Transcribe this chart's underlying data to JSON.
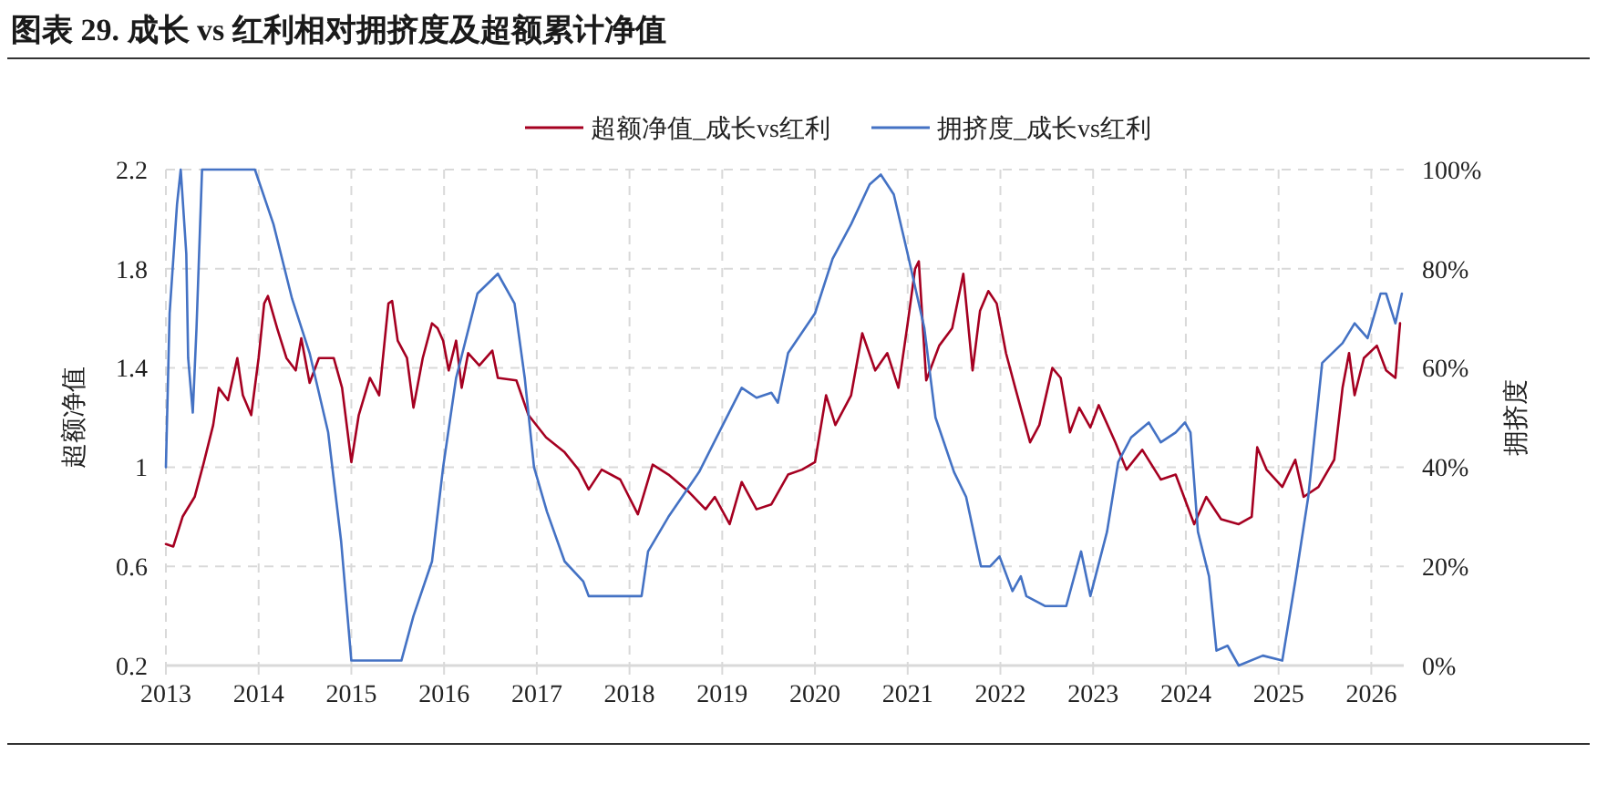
{
  "chart_data": {
    "type": "line",
    "title": "图表 29. 成长 vs 红利相对拥挤度及超额累计净值",
    "ylabel": "超额净值",
    "y2label": "拥挤度",
    "xlim": [
      2013,
      2026.35
    ],
    "xticks": [
      2013,
      2014,
      2015,
      2016,
      2017,
      2018,
      2019,
      2020,
      2021,
      2022,
      2023,
      2024,
      2025,
      2026
    ],
    "ylim": [
      0.2,
      2.2
    ],
    "yticks": [
      {
        "value": 0.2,
        "label": "0.2"
      },
      {
        "value": 0.6,
        "label": "0.6"
      },
      1,
      {
        "value": 1.4,
        "label": "1.4"
      },
      {
        "value": 1.8,
        "label": "1.8"
      },
      {
        "value": 2.2,
        "label": "2.2"
      }
    ],
    "y2lim": [
      0,
      100
    ],
    "y2ticks": [
      {
        "value": 0,
        "label": "0%"
      },
      {
        "value": 20,
        "label": "20%"
      },
      {
        "value": 40,
        "label": "40%"
      },
      {
        "value": 60,
        "label": "60%"
      },
      {
        "value": 80,
        "label": "80%"
      },
      {
        "value": 100,
        "label": "100%"
      }
    ],
    "grid": true,
    "legend": "top",
    "line_style": "solid",
    "marker": "none",
    "series": [
      {
        "name": "超额净值_成长vs红利",
        "color": "#a50021",
        "x": [
          2013.0,
          2013.08,
          2013.18,
          2013.31,
          2013.41,
          2013.51,
          2013.57,
          2013.67,
          2013.77,
          2013.83,
          2013.92,
          2014.0,
          2014.06,
          2014.1,
          2014.2,
          2014.3,
          2014.4,
          2014.46,
          2014.55,
          2014.65,
          2014.81,
          2014.9,
          2015.0,
          2015.08,
          2015.2,
          2015.3,
          2015.4,
          2015.44,
          2015.5,
          2015.6,
          2015.67,
          2015.77,
          2015.87,
          2015.93,
          2015.99,
          2016.05,
          2016.13,
          2016.19,
          2016.26,
          2016.38,
          2016.52,
          2016.58,
          2016.78,
          2016.91,
          2017.1,
          2017.3,
          2017.45,
          2017.56,
          2017.7,
          2017.9,
          2018.09,
          2018.25,
          2018.42,
          2018.64,
          2018.82,
          2018.92,
          2019.08,
          2019.21,
          2019.37,
          2019.53,
          2019.71,
          2019.86,
          2020.0,
          2020.12,
          2020.22,
          2020.39,
          2020.51,
          2020.65,
          2020.78,
          2020.9,
          2021.0,
          2021.08,
          2021.12,
          2021.2,
          2021.34,
          2021.48,
          2021.6,
          2021.7,
          2021.78,
          2021.87,
          2021.96,
          2022.06,
          2022.16,
          2022.32,
          2022.42,
          2022.56,
          2022.65,
          2022.75,
          2022.85,
          2022.97,
          2023.06,
          2023.24,
          2023.36,
          2023.53,
          2023.73,
          2023.89,
          2024.09,
          2024.22,
          2024.38,
          2024.57,
          2024.71,
          2024.77,
          2024.87,
          2025.04,
          2025.18,
          2025.27,
          2025.43,
          2025.6,
          2025.69,
          2025.76,
          2025.82,
          2025.92,
          2026.06,
          2026.16,
          2026.26,
          2026.31
        ],
        "values": [
          0.69,
          0.68,
          0.8,
          0.88,
          1.02,
          1.17,
          1.32,
          1.27,
          1.44,
          1.29,
          1.21,
          1.44,
          1.66,
          1.69,
          1.56,
          1.44,
          1.39,
          1.52,
          1.34,
          1.44,
          1.44,
          1.32,
          1.02,
          1.21,
          1.36,
          1.29,
          1.66,
          1.67,
          1.51,
          1.44,
          1.24,
          1.44,
          1.58,
          1.56,
          1.51,
          1.39,
          1.51,
          1.32,
          1.46,
          1.41,
          1.47,
          1.36,
          1.35,
          1.21,
          1.12,
          1.06,
          0.99,
          0.91,
          0.99,
          0.95,
          0.81,
          1.01,
          0.97,
          0.9,
          0.83,
          0.88,
          0.77,
          0.94,
          0.83,
          0.85,
          0.97,
          0.99,
          1.02,
          1.29,
          1.17,
          1.29,
          1.54,
          1.39,
          1.46,
          1.32,
          1.58,
          1.8,
          1.83,
          1.35,
          1.49,
          1.56,
          1.78,
          1.39,
          1.63,
          1.71,
          1.66,
          1.46,
          1.32,
          1.1,
          1.17,
          1.4,
          1.36,
          1.14,
          1.24,
          1.16,
          1.25,
          1.1,
          0.99,
          1.07,
          0.95,
          0.97,
          0.77,
          0.88,
          0.79,
          0.77,
          0.8,
          1.08,
          0.99,
          0.92,
          1.03,
          0.88,
          0.92,
          1.03,
          1.32,
          1.46,
          1.29,
          1.44,
          1.49,
          1.39,
          1.36,
          1.58
        ]
      },
      {
        "name": "拥挤度_成长vs红利",
        "color": "#4472c4",
        "axis": "y2",
        "x": [
          2013.0,
          2013.04,
          2013.12,
          2013.16,
          2013.22,
          2013.24,
          2013.29,
          2013.33,
          2013.39,
          2013.96,
          2014.16,
          2014.36,
          2014.55,
          2014.75,
          2014.89,
          2015.0,
          2015.54,
          2015.67,
          2015.87,
          2015.99,
          2016.13,
          2016.36,
          2016.58,
          2016.76,
          2016.87,
          2016.97,
          2017.11,
          2017.3,
          2017.5,
          2017.56,
          2017.96,
          2018.13,
          2018.2,
          2018.42,
          2018.75,
          2019.02,
          2019.21,
          2019.37,
          2019.53,
          2019.6,
          2019.71,
          2020.0,
          2020.19,
          2020.39,
          2020.59,
          2020.71,
          2020.85,
          2021.0,
          2021.18,
          2021.3,
          2021.5,
          2021.63,
          2021.79,
          2021.89,
          2021.99,
          2022.13,
          2022.22,
          2022.28,
          2022.48,
          2022.71,
          2022.87,
          2022.97,
          2023.15,
          2023.27,
          2023.41,
          2023.6,
          2023.73,
          2023.89,
          2023.99,
          2024.05,
          2024.13,
          2024.25,
          2024.33,
          2024.45,
          2024.57,
          2024.83,
          2025.04,
          2025.18,
          2025.32,
          2025.47,
          2025.69,
          2025.82,
          2025.96,
          2026.1,
          2026.16,
          2026.26,
          2026.33
        ],
        "values": [
          40,
          71,
          93,
          100,
          83,
          62,
          51,
          68,
          100,
          100,
          89,
          74,
          63,
          47,
          25,
          1,
          1,
          10,
          21,
          40,
          58,
          75,
          79,
          73,
          58,
          40,
          31,
          21,
          17,
          14,
          14,
          14,
          23,
          30,
          39,
          49,
          56,
          54,
          55,
          53,
          63,
          71,
          82,
          89,
          97,
          99,
          95,
          83,
          68,
          50,
          39,
          34,
          20,
          20,
          22,
          15,
          18,
          14,
          12,
          12,
          23,
          14,
          27,
          41,
          46,
          49,
          45,
          47,
          49,
          47,
          27,
          18,
          3,
          4,
          0,
          2,
          1,
          17,
          34,
          61,
          65,
          69,
          66,
          75,
          75,
          69,
          75
        ]
      }
    ]
  }
}
